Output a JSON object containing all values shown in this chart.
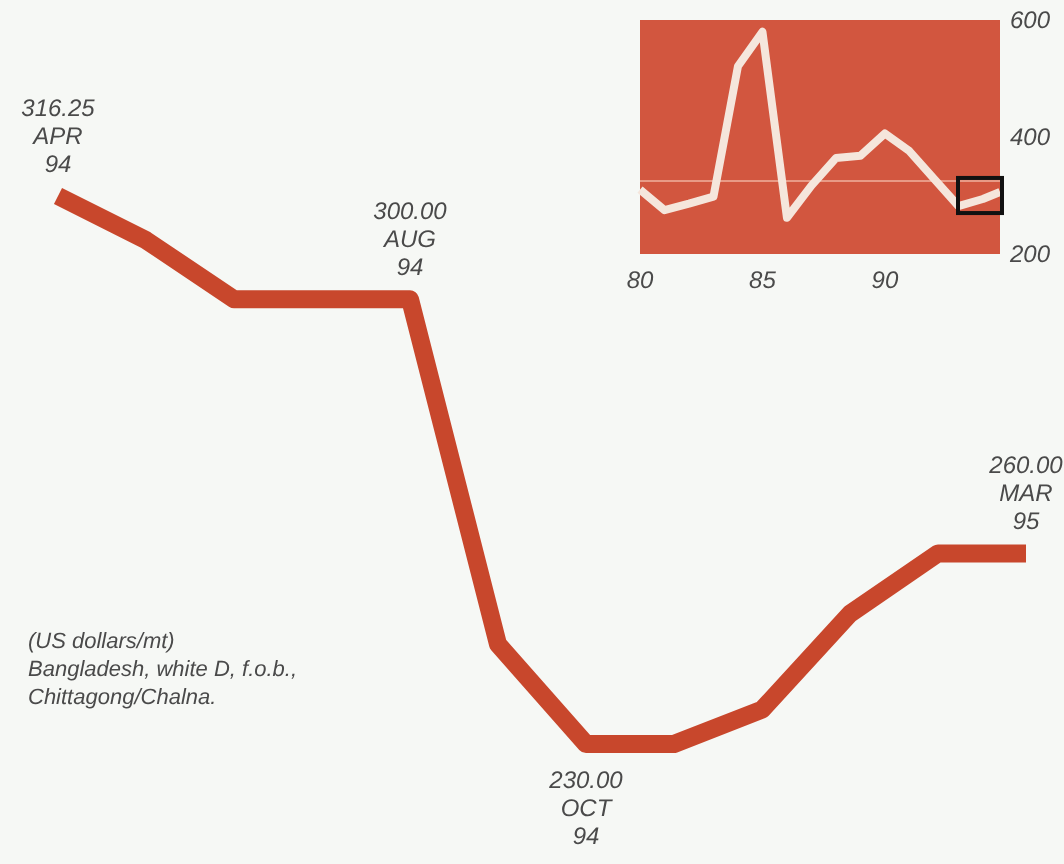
{
  "chart_data": [
    {
      "type": "line",
      "categories": [
        null,
        null,
        null,
        null,
        null,
        null,
        null,
        null,
        null,
        null,
        null,
        null
      ],
      "series": [
        {
          "color": "#c8472c",
          "values": [
            316.25,
            309.3,
            300,
            300,
            300,
            245.7,
            230,
            230,
            235.4,
            250.5,
            260,
            260
          ],
          "value_labels": [
            "316.25\nAPR\n94",
            null,
            null,
            null,
            "300.00\nAUG\n94",
            null,
            "230.00\nOCT\n94",
            null,
            null,
            null,
            null,
            "260.00\nMAR\n95"
          ]
        }
      ],
      "annotations": [
        "(US dollars/mt)",
        "Bangladesh, white D, f.o.b.,",
        "Chittagong/Chalna."
      ]
    },
    {
      "type": "line",
      "x": [
        80,
        81,
        82,
        83,
        84,
        85,
        86,
        87,
        88,
        89,
        90,
        91,
        92,
        93,
        94,
        94.7
      ],
      "series": [
        {
          "color": "#f5e6dc",
          "values": [
            310,
            275,
            286,
            298,
            521,
            580,
            262,
            317,
            364,
            368,
            406,
            376,
            329,
            282,
            294,
            306
          ]
        }
      ],
      "xlim": [
        80,
        94.7
      ],
      "ylim": [
        200,
        600
      ],
      "xticks": [
        80,
        85,
        90
      ],
      "yticks": [
        200,
        400,
        600
      ],
      "ref_lines": [
        {
          "axis": "y",
          "value": 325,
          "color": "#e89a86"
        }
      ]
    }
  ]
}
